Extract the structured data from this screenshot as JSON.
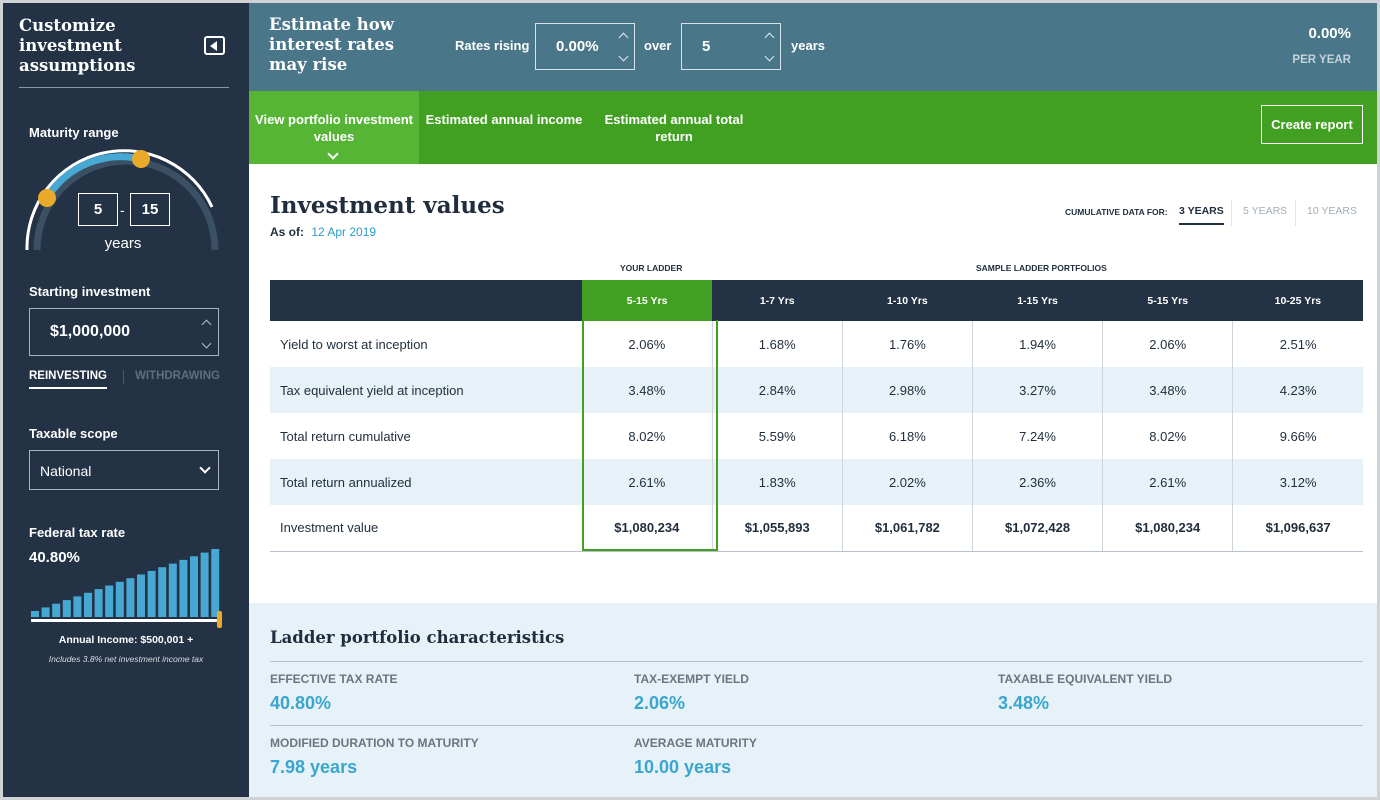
{
  "sidebar": {
    "title": "Customize investment assumptions",
    "maturity": {
      "label": "Maturity range",
      "low": "5",
      "high": "15",
      "dash": "-",
      "unit": "years"
    },
    "starting": {
      "label": "Starting investment",
      "value": "$1,000,000"
    },
    "modes": {
      "active": "REINVESTING",
      "inactive": "WITHDRAWING"
    },
    "scope": {
      "label": "Taxable scope",
      "value": "National"
    },
    "tax": {
      "label": "Federal tax rate",
      "value": "40.80%",
      "bracket_level": 1.0,
      "annual_income": "Annual Income: $500,001 +",
      "note": "Includes 3.8% net investment income tax"
    }
  },
  "header": {
    "title": "Estimate how interest rates may rise",
    "rates_label": "Rates rising",
    "rate_value": "0.00%",
    "over_label": "over",
    "years_value": "5",
    "years_label": "years",
    "result_value": "0.00%",
    "result_unit": "PER YEAR"
  },
  "tabs": [
    {
      "label": "View portfolio investment values",
      "active": true
    },
    {
      "label": "Estimated annual income",
      "active": false
    },
    {
      "label": "Estimated annual total return",
      "active": false
    }
  ],
  "create_report": "Create report",
  "investment": {
    "title": "Investment values",
    "as_of_label": "As of:",
    "as_of_date": "12 Apr 2019",
    "cumulative_label": "CUMULATIVE DATA FOR:",
    "year_options": [
      "3 YEARS",
      "5 YEARS",
      "10 YEARS"
    ],
    "your_ladder_label": "YOUR LADDER",
    "sample_label": "SAMPLE LADDER PORTFOLIOS",
    "columns": [
      "5-15 Yrs",
      "1-7 Yrs",
      "1-10 Yrs",
      "1-15 Yrs",
      "5-15 Yrs",
      "10-25 Yrs"
    ],
    "rows": [
      {
        "label": "Yield to worst at inception",
        "values": [
          "2.06%",
          "1.68%",
          "1.76%",
          "1.94%",
          "2.06%",
          "2.51%"
        ]
      },
      {
        "label": "Tax equivalent yield at inception",
        "values": [
          "3.48%",
          "2.84%",
          "2.98%",
          "3.27%",
          "3.48%",
          "4.23%"
        ]
      },
      {
        "label": "Total return cumulative",
        "values": [
          "8.02%",
          "5.59%",
          "6.18%",
          "7.24%",
          "8.02%",
          "9.66%"
        ]
      },
      {
        "label": "Total return annualized",
        "values": [
          "2.61%",
          "1.83%",
          "2.02%",
          "2.36%",
          "2.61%",
          "3.12%"
        ]
      },
      {
        "label": "Investment value",
        "values": [
          "$1,080,234",
          "$1,055,893",
          "$1,061,782",
          "$1,072,428",
          "$1,080,234",
          "$1,096,637"
        ]
      }
    ]
  },
  "characteristics": {
    "title": "Ladder portfolio characteristics",
    "items": [
      {
        "label": "EFFECTIVE TAX RATE",
        "value": "40.80%"
      },
      {
        "label": "TAX-EXEMPT YIELD",
        "value": "2.06%"
      },
      {
        "label": "TAXABLE EQUIVALENT YIELD",
        "value": "3.48%"
      },
      {
        "label": "MODIFIED DURATION TO MATURITY",
        "value": "7.98 years"
      },
      {
        "label": "AVERAGE MATURITY",
        "value": "10.00 years"
      }
    ]
  },
  "colors": {
    "navy": "#233245",
    "header_teal": "#4a7689",
    "green": "#41a021",
    "green_active": "#57b535",
    "accent_blue": "#3aa6cf",
    "handle_orange": "#e9a92a",
    "bar_blue": "#47a8d3"
  }
}
